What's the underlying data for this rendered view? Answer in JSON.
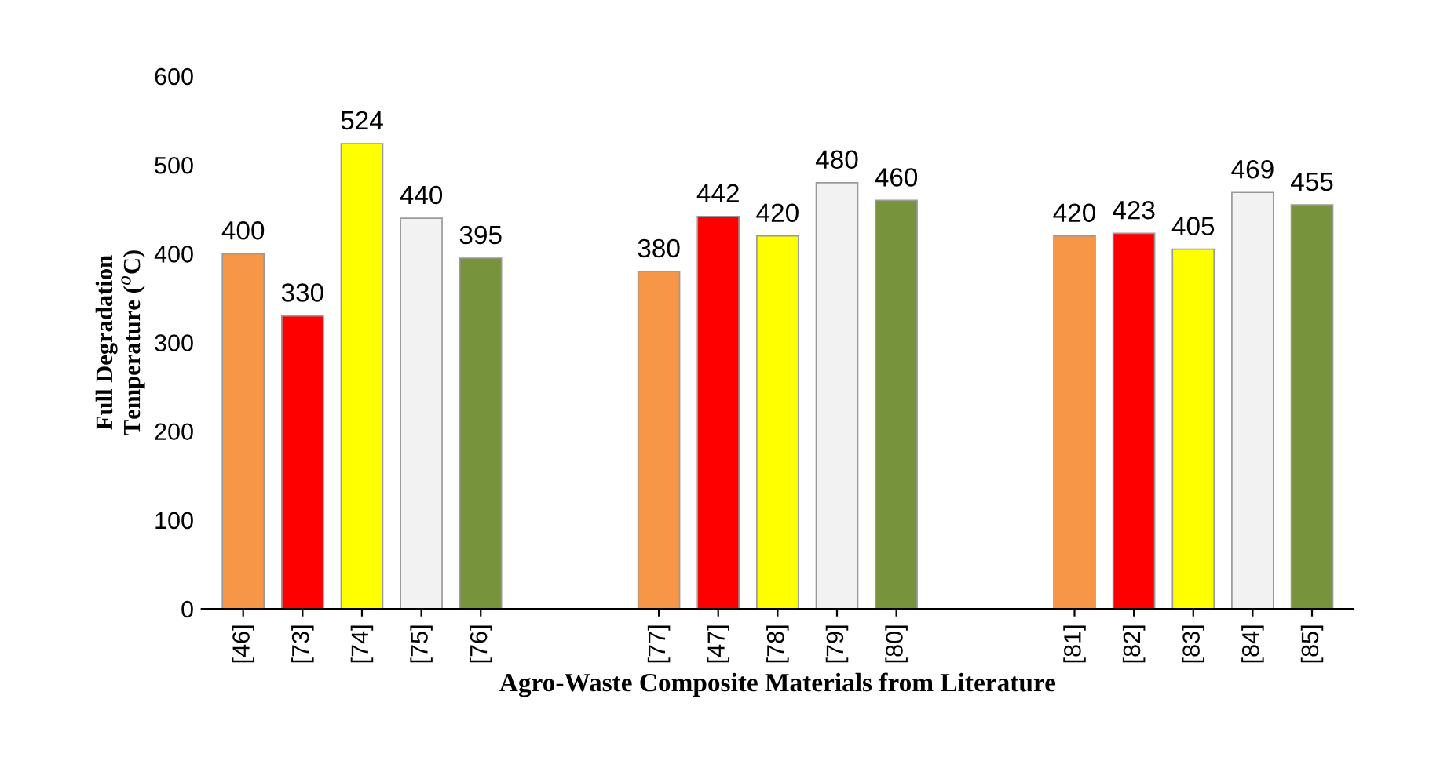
{
  "chart_data": {
    "type": "bar",
    "xlabel": "Agro-Waste Composite Materials from Literature",
    "ylabel": "Full Degradation\nTemperature ($^{o}$C)",
    "categories": [
      "[46]",
      "[73]",
      "[74]",
      "[75]",
      "[76]",
      null,
      null,
      "[77]",
      "[47]",
      "[78]",
      "[79]",
      "[80]",
      null,
      null,
      "[81]",
      "[82]",
      "[83]",
      "[84]",
      "[85]"
    ],
    "values": [
      400,
      330,
      524,
      440,
      395,
      null,
      null,
      380,
      442,
      420,
      480,
      460,
      null,
      null,
      420,
      423,
      405,
      469,
      455
    ],
    "colors": [
      "#f79646",
      "#ff0000",
      "#ffff00",
      "#f2f2f2",
      "#77933c",
      null,
      null,
      "#f79646",
      "#ff0000",
      "#ffff00",
      "#f2f2f2",
      "#77933c",
      null,
      null,
      "#f79646",
      "#ff0000",
      "#ffff00",
      "#f2f2f2",
      "#77933c"
    ],
    "ylim": [
      0,
      600
    ],
    "yticks": [
      0,
      100,
      200,
      300,
      400,
      500,
      600
    ],
    "data_labels": true,
    "grid": false
  }
}
